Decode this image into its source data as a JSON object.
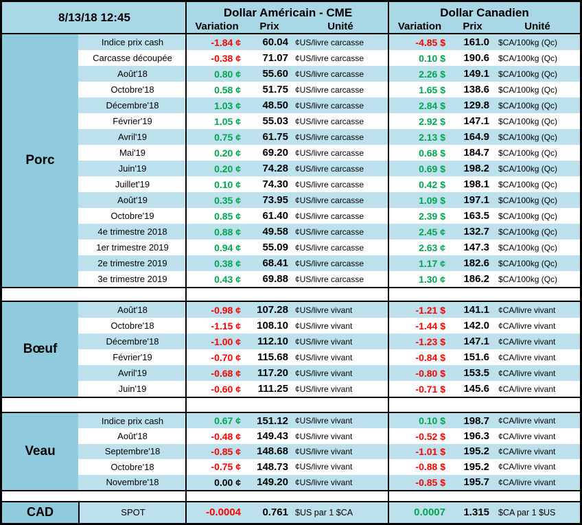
{
  "meta": {
    "timestamp": "8/13/18 12:45"
  },
  "header": {
    "usd_title": "Dollar Américain - CME",
    "cad_title": "Dollar Canadien",
    "columns": {
      "variation": "Variation",
      "prix": "Prix",
      "unite": "Unité"
    }
  },
  "colors": {
    "positive": "#00A550",
    "negative": "#FF0000",
    "neutral": "#000000",
    "header_bg": "#A9D7E6",
    "row_blue": "#BCE1EC",
    "section_bg": "#8FCBDD",
    "border": "#000000"
  },
  "sections": [
    {
      "name": "Porc",
      "rows": [
        [
          "Indice prix cash",
          "-1.84 ¢",
          "60.04",
          "¢US/livre carcasse",
          "-4.85 $",
          "161.0",
          "$CA/100kg (Qc)"
        ],
        [
          "Carcasse découpée",
          "-0.38 ¢",
          "71.07",
          "¢US/livre carcasse",
          "0.10 $",
          "190.6",
          "$CA/100kg (Qc)"
        ],
        [
          "Août'18",
          "0.80 ¢",
          "55.60",
          "¢US/livre carcasse",
          "2.26 $",
          "149.1",
          "$CA/100kg (Qc)"
        ],
        [
          "Octobre'18",
          "0.58 ¢",
          "51.75",
          "¢US/livre carcasse",
          "1.65 $",
          "138.6",
          "$CA/100kg (Qc)"
        ],
        [
          "Décembre'18",
          "1.03 ¢",
          "48.50",
          "¢US/livre carcasse",
          "2.84 $",
          "129.8",
          "$CA/100kg (Qc)"
        ],
        [
          "Février'19",
          "1.05 ¢",
          "55.03",
          "¢US/livre carcasse",
          "2.92 $",
          "147.1",
          "$CA/100kg (Qc)"
        ],
        [
          "Avril'19",
          "0.75 ¢",
          "61.75",
          "¢US/livre carcasse",
          "2.13 $",
          "164.9",
          "$CA/100kg (Qc)"
        ],
        [
          "Mai'19",
          "0.20 ¢",
          "69.20",
          "¢US/livre carcasse",
          "0.68 $",
          "184.7",
          "$CA/100kg (Qc)"
        ],
        [
          "Juin'19",
          "0.20 ¢",
          "74.28",
          "¢US/livre carcasse",
          "0.69 $",
          "198.2",
          "$CA/100kg (Qc)"
        ],
        [
          "Juillet'19",
          "0.10 ¢",
          "74.30",
          "¢US/livre carcasse",
          "0.42 $",
          "198.1",
          "$CA/100kg (Qc)"
        ],
        [
          "Août'19",
          "0.35 ¢",
          "73.95",
          "¢US/livre carcasse",
          "1.09 $",
          "197.1",
          "$CA/100kg (Qc)"
        ],
        [
          "Octobre'19",
          "0.85 ¢",
          "61.40",
          "¢US/livre carcasse",
          "2.39 $",
          "163.5",
          "$CA/100kg (Qc)"
        ],
        [
          "4e trimestre 2018",
          "0.88 ¢",
          "49.58",
          "¢US/livre carcasse",
          "2.45 ¢",
          "132.7",
          "$CA/100kg (Qc)"
        ],
        [
          "1er trimestre 2019",
          "0.94 ¢",
          "55.09",
          "¢US/livre carcasse",
          "2.63 ¢",
          "147.3",
          "$CA/100kg (Qc)"
        ],
        [
          "2e trimestre 2019",
          "0.38 ¢",
          "68.41",
          "¢US/livre carcasse",
          "1.17 ¢",
          "182.6",
          "$CA/100kg (Qc)"
        ],
        [
          "3e trimestre 2019",
          "0.43 ¢",
          "69.88",
          "¢US/livre carcasse",
          "1.30 ¢",
          "186.2",
          "$CA/100kg (Qc)"
        ]
      ]
    },
    {
      "name": "Bœuf",
      "rows": [
        [
          "Août'18",
          "-0.98 ¢",
          "107.28",
          "¢US/livre vivant",
          "-1.21 $",
          "141.1",
          "¢CA/livre vivant"
        ],
        [
          "Octobre'18",
          "-1.15 ¢",
          "108.10",
          "¢US/livre vivant",
          "-1.44 $",
          "142.0",
          "¢CA/livre vivant"
        ],
        [
          "Décembre'18",
          "-1.00 ¢",
          "112.10",
          "¢US/livre vivant",
          "-1.23 $",
          "147.1",
          "¢CA/livre vivant"
        ],
        [
          "Février'19",
          "-0.70 ¢",
          "115.68",
          "¢US/livre vivant",
          "-0.84 $",
          "151.6",
          "¢CA/livre vivant"
        ],
        [
          "Avril'19",
          "-0.68 ¢",
          "117.20",
          "¢US/livre vivant",
          "-0.80 $",
          "153.5",
          "¢CA/livre vivant"
        ],
        [
          "Juin'19",
          "-0.60 ¢",
          "111.25",
          "¢US/livre vivant",
          "-0.71 $",
          "145.6",
          "¢CA/livre vivant"
        ]
      ]
    },
    {
      "name": "Veau",
      "rows": [
        [
          "Indice prix cash",
          "0.67 ¢",
          "151.12",
          "¢US/livre vivant",
          "0.10 $",
          "198.7",
          "¢CA/livre vivant"
        ],
        [
          "Août'18",
          "-0.48 ¢",
          "149.43",
          "¢US/livre vivant",
          "-0.52 $",
          "196.3",
          "¢CA/livre vivant"
        ],
        [
          "Septembre'18",
          "-0.85 ¢",
          "148.68",
          "¢US/livre vivant",
          "-1.01 $",
          "195.2",
          "¢CA/livre vivant"
        ],
        [
          "Octobre'18",
          "-0.75 ¢",
          "148.73",
          "¢US/livre vivant",
          "-0.88 $",
          "195.2",
          "¢CA/livre vivant"
        ],
        [
          "Novembre'18",
          "0.00 ¢",
          "149.20",
          "¢US/livre vivant",
          "-0.85 $",
          "195.7",
          "¢CA/livre vivant"
        ]
      ]
    },
    {
      "name": "CAD",
      "rows": [
        [
          "SPOT",
          "-0.0004",
          "0.761",
          "$US par 1 $CA",
          "0.0007",
          "1.315",
          "$CA par 1 $US"
        ]
      ]
    }
  ]
}
